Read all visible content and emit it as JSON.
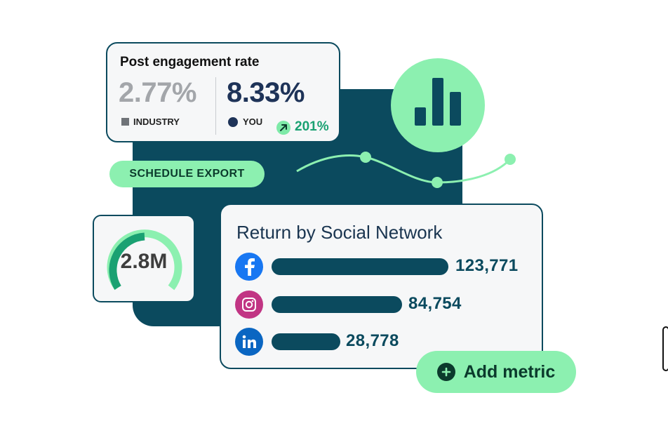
{
  "engagement": {
    "title": "Post engagement rate",
    "industry_value": "2.77%",
    "industry_label": "INDUSTRY",
    "you_value": "8.33%",
    "you_label": "YOU",
    "growth": "201%",
    "growth_icon": "arrow-up-right-icon"
  },
  "schedule_export": {
    "label": "SCHEDULE EXPORT"
  },
  "chart_icon": {
    "icon": "bar-chart-icon"
  },
  "gauge": {
    "value": "2.8M",
    "fill_fraction": 0.55
  },
  "return_card": {
    "title": "Return by Social Network",
    "networks": [
      {
        "icon": "facebook-icon",
        "value": "123,771"
      },
      {
        "icon": "instagram-icon",
        "value": "84,754"
      },
      {
        "icon": "linkedin-icon",
        "value": "28,778"
      }
    ]
  },
  "add_metric": {
    "label": "Add metric",
    "icon": "plus-circle-icon"
  },
  "colors": {
    "teal_dark": "#0b4a5e",
    "mint": "#8cf0b0",
    "navy": "#1e3358",
    "growth_green": "#1aa172"
  }
}
